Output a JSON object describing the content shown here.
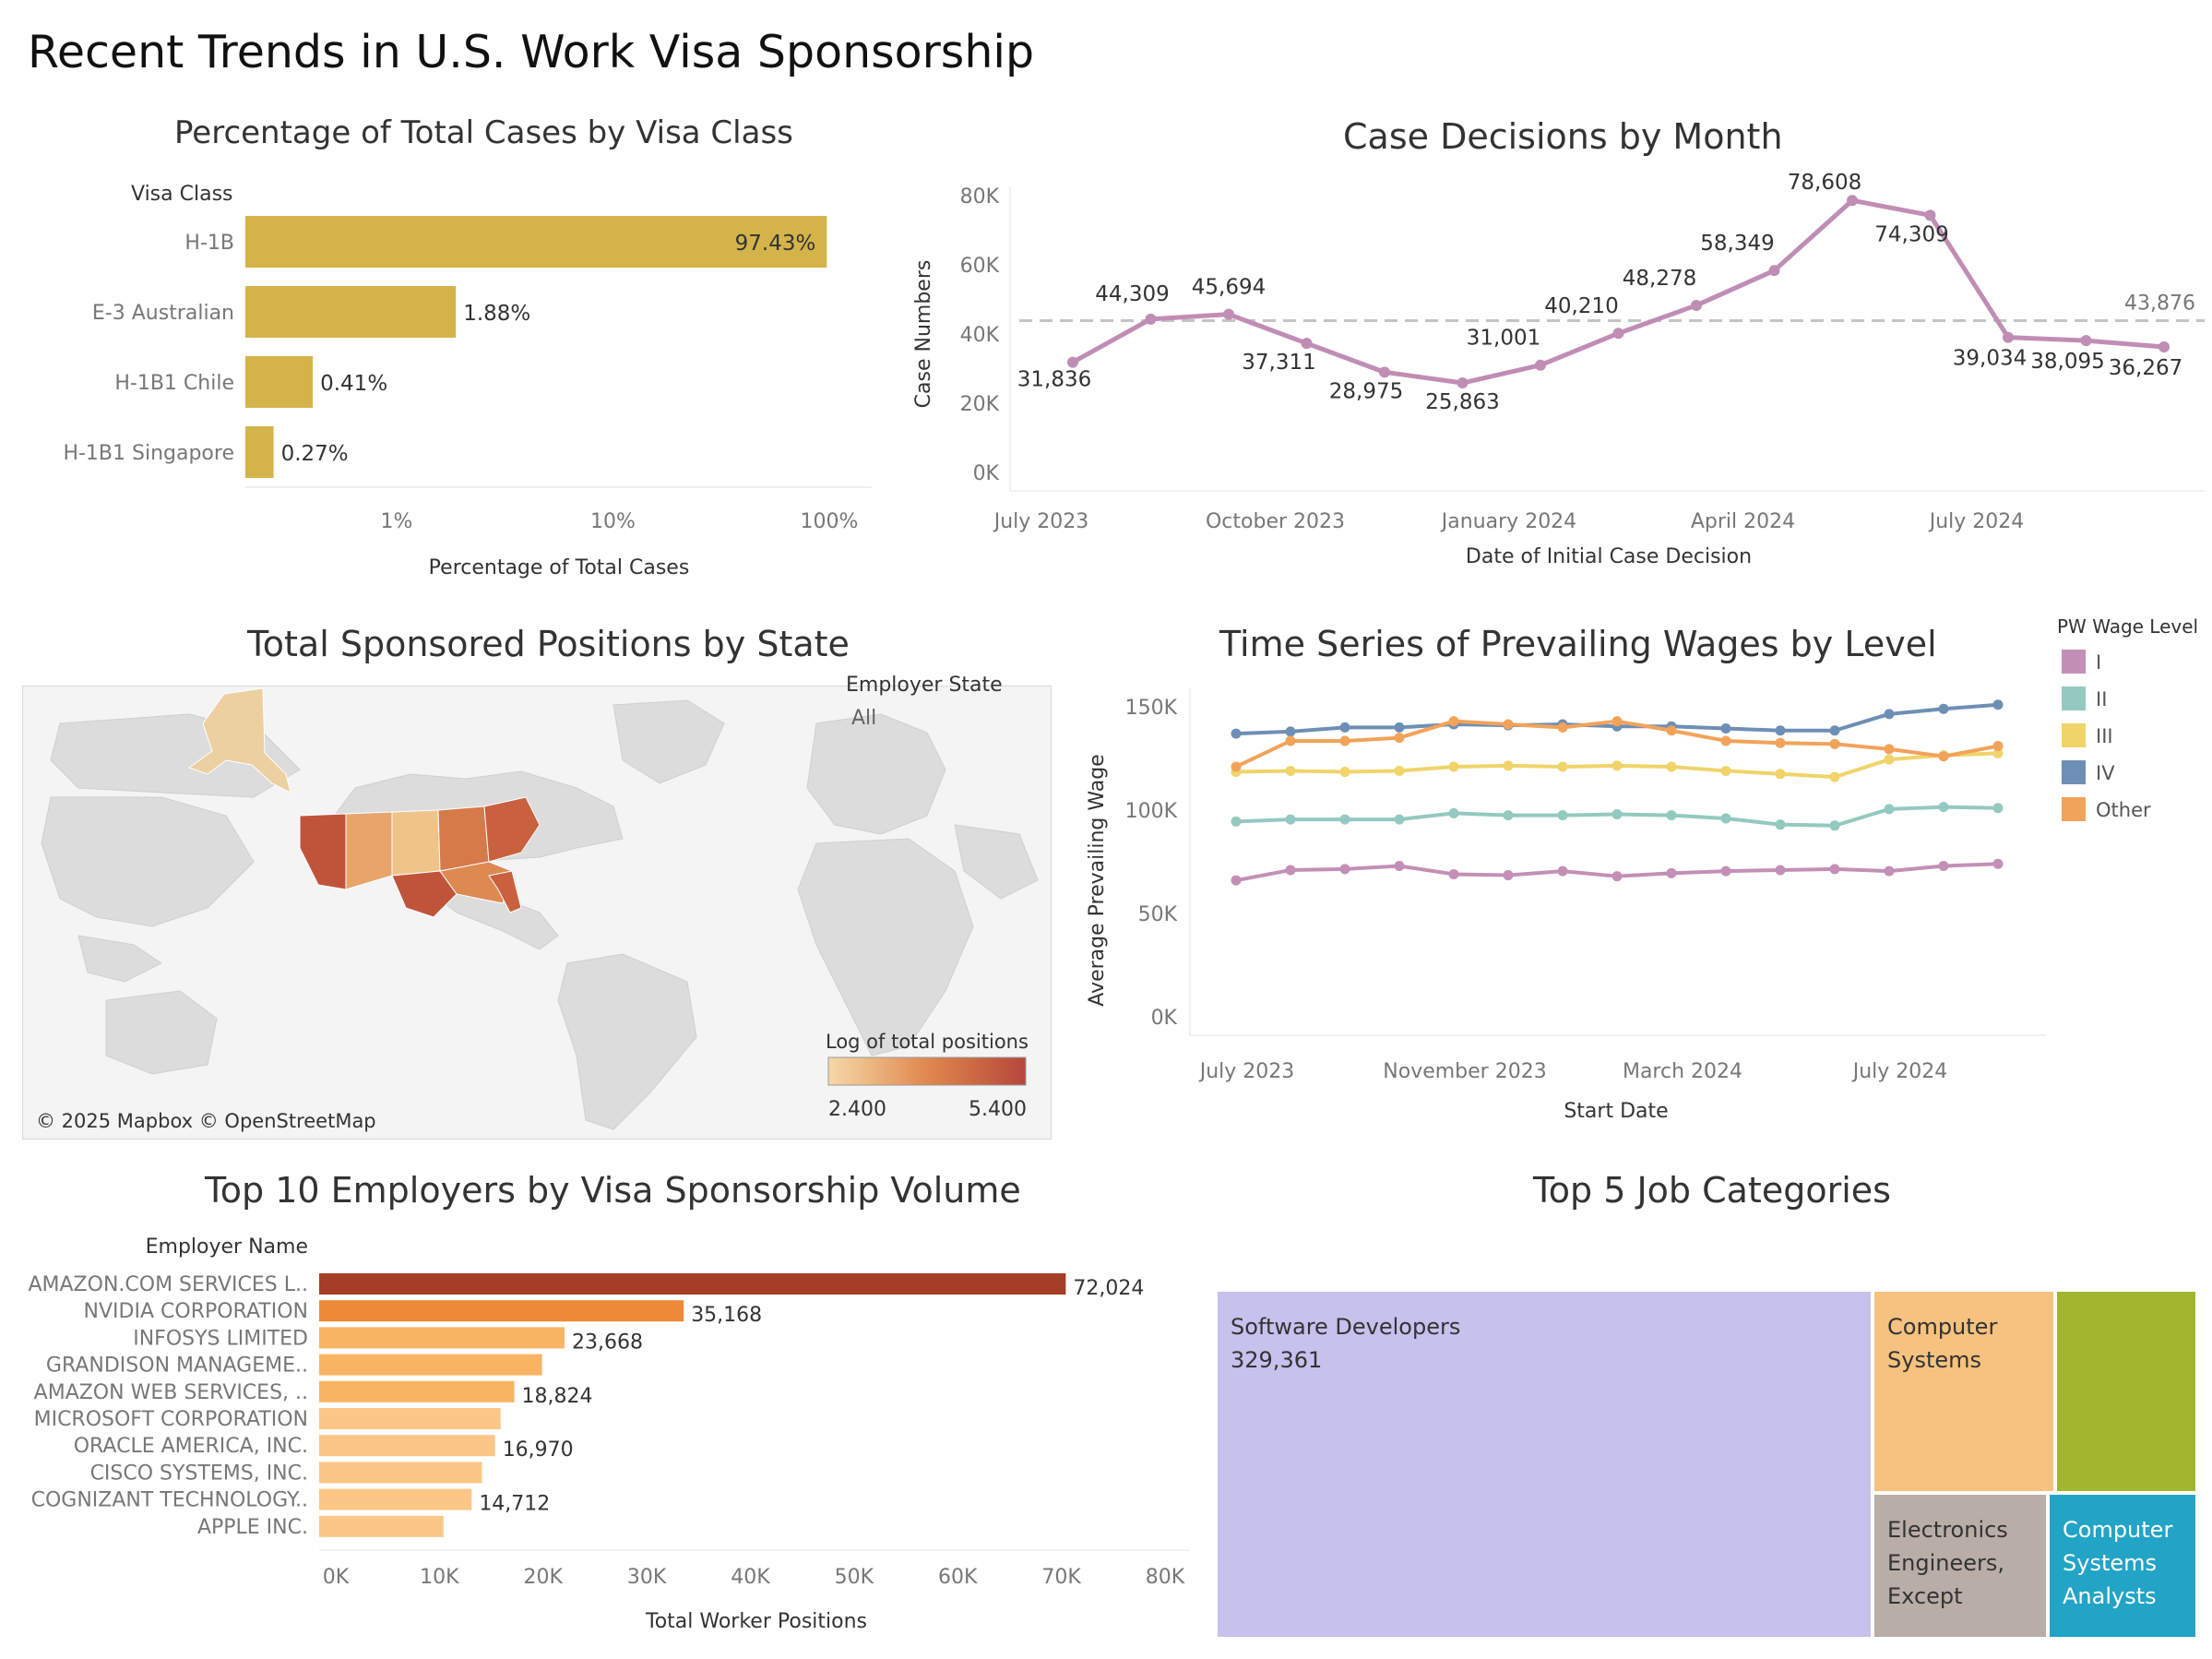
{
  "dashboard_title": "Recent Trends in U.S. Work Visa Sponsorship",
  "panels": {
    "visa_class": {
      "title": "Percentage of Total Cases by Visa Class"
    },
    "case_decisions": {
      "title": "Case Decisions by Month"
    },
    "state_map": {
      "title": "Total Sponsored Positions by State",
      "filter_label": "Employer State",
      "filter_value": "All",
      "legend_title": "Log of total positions",
      "legend_min": "2.400",
      "legend_max": "5.400",
      "attribution": "© 2025 Mapbox © OpenStreetMap",
      "colors": {
        "low": "#f5d9a8",
        "mid": "#e0884d",
        "high": "#b5473a"
      }
    },
    "wages": {
      "title": "Time Series of Prevailing Wages by Level"
    },
    "employers": {
      "title": "Top 10 Employers by Visa Sponsorship Volume"
    },
    "jobs": {
      "title": "Top 5 Job Categories"
    }
  },
  "chart_data": [
    {
      "id": "visa_class",
      "type": "bar",
      "orientation": "horizontal",
      "xscale": "log",
      "column_header": "Visa Class",
      "xlabel": "Percentage of Total Cases",
      "x_ticks": [
        "1%",
        "10%",
        "100%"
      ],
      "categories": [
        "H-1B",
        "E-3 Australian",
        "H-1B1 Chile",
        "H-1B1 Singapore"
      ],
      "values": [
        97.43,
        1.88,
        0.41,
        0.27
      ],
      "labels": [
        "97.43%",
        "1.88%",
        "0.41%",
        "0.27%"
      ],
      "color": "#d4b44a"
    },
    {
      "id": "case_decisions",
      "type": "line",
      "xlabel": "Date of Initial Case Decision",
      "ylabel": "Case Numbers",
      "ylim": [
        0,
        80000
      ],
      "y_ticks": [
        "0K",
        "20K",
        "40K",
        "60K",
        "80K"
      ],
      "x_ticks": [
        "July 2023",
        "October 2023",
        "January 2024",
        "April 2024",
        "July 2024"
      ],
      "x": [
        "2023-07",
        "2023-08",
        "2023-09",
        "2023-10",
        "2023-11",
        "2023-12",
        "2024-01",
        "2024-02",
        "2024-03",
        "2024-04",
        "2024-05",
        "2024-06",
        "2024-07",
        "2024-08",
        "2024-09"
      ],
      "values": [
        31836,
        44309,
        45694,
        37311,
        28975,
        25863,
        31001,
        40210,
        48278,
        58349,
        78608,
        74309,
        39034,
        38095,
        36267
      ],
      "labels": [
        "31,836",
        "44,309",
        "45,694",
        "37,311",
        "28,975",
        "25,863",
        "31,001",
        "40,210",
        "48,278",
        "58,349",
        "78,608",
        "74,309",
        "39,034",
        "38,095",
        "36,267"
      ],
      "reference_line": {
        "value": 43876,
        "label": "43,876"
      },
      "color": "#c08db5"
    },
    {
      "id": "wages",
      "type": "line",
      "xlabel": "Start Date",
      "ylabel": "Average Prevailing Wage",
      "ylim": [
        0,
        150000
      ],
      "y_ticks": [
        "0K",
        "50K",
        "100K",
        "150K"
      ],
      "x_ticks": [
        "July 2023",
        "November 2023",
        "March 2024",
        "July 2024"
      ],
      "x": [
        "2023-07",
        "2023-08",
        "2023-09",
        "2023-10",
        "2023-11",
        "2023-12",
        "2024-01",
        "2024-02",
        "2024-03",
        "2024-04",
        "2024-05",
        "2024-06",
        "2024-07",
        "2024-08",
        "2024-09"
      ],
      "legend_title": "PW Wage Level",
      "series": [
        {
          "name": "I",
          "color": "#c48fb7",
          "values": [
            66000,
            71000,
            71500,
            73000,
            69000,
            68500,
            70500,
            68000,
            69500,
            70500,
            71000,
            71500,
            70500,
            73000,
            74000
          ]
        },
        {
          "name": "II",
          "color": "#93c9c1",
          "values": [
            94500,
            95500,
            95500,
            95500,
            98500,
            97500,
            97500,
            98000,
            97500,
            96000,
            93000,
            92500,
            100500,
            101500,
            101000
          ]
        },
        {
          "name": "III",
          "color": "#f0d46a",
          "values": [
            118500,
            119000,
            118500,
            119000,
            121000,
            121500,
            121000,
            121500,
            121000,
            119000,
            117500,
            116000,
            124500,
            126500,
            127500
          ]
        },
        {
          "name": "IV",
          "color": "#6e8fb5",
          "values": [
            137000,
            138000,
            140000,
            140000,
            141500,
            141000,
            141500,
            140500,
            140500,
            139500,
            138500,
            138500,
            146500,
            149000,
            151000
          ]
        },
        {
          "name": "Other",
          "color": "#f2a35a",
          "values": [
            121000,
            133500,
            133500,
            135000,
            143000,
            141500,
            140000,
            143000,
            138500,
            133500,
            132500,
            132000,
            129500,
            126000,
            131000
          ]
        }
      ]
    },
    {
      "id": "employers",
      "type": "bar",
      "orientation": "horizontal",
      "column_header": "Employer Name",
      "xlabel": "Total Worker Positions",
      "xlim": [
        0,
        80000
      ],
      "x_ticks": [
        "0K",
        "10K",
        "20K",
        "30K",
        "40K",
        "50K",
        "60K",
        "70K",
        "80K"
      ],
      "categories": [
        "AMAZON.COM SERVICES L..",
        "NVIDIA CORPORATION",
        "INFOSYS LIMITED",
        "GRANDISON MANAGEME..",
        "AMAZON WEB SERVICES, ..",
        "MICROSOFT CORPORATION",
        "ORACLE AMERICA, INC.",
        "CISCO SYSTEMS, INC.",
        "COGNIZANT TECHNOLOGY..",
        "APPLE INC."
      ],
      "values": [
        72024,
        35168,
        23668,
        21500,
        18824,
        17500,
        16970,
        15700,
        14712,
        12000
      ],
      "labels": [
        "72,024",
        "35,168",
        "23,668",
        "",
        "18,824",
        "",
        "16,970",
        "",
        "14,712",
        ""
      ],
      "colors": [
        "#a63d26",
        "#ee8a36",
        "#f8b462",
        "#f8b462",
        "#f8b462",
        "#fbc786",
        "#fbc786",
        "#fbc786",
        "#fbc786",
        "#fbc786"
      ]
    },
    {
      "id": "jobs",
      "type": "treemap",
      "items": [
        {
          "label": "Software Developers",
          "value": 329361,
          "value_label": "329,361",
          "color": "#c6c1ed"
        },
        {
          "label": "Computer Systems",
          "color": "#f6c27f"
        },
        {
          "label": "",
          "color": "#a1b62d"
        },
        {
          "label": "Electronics Engineers, Except",
          "color": "#b9aea7"
        },
        {
          "label": "Computer Systems Analysts",
          "color": "#22a4c6"
        }
      ]
    }
  ]
}
